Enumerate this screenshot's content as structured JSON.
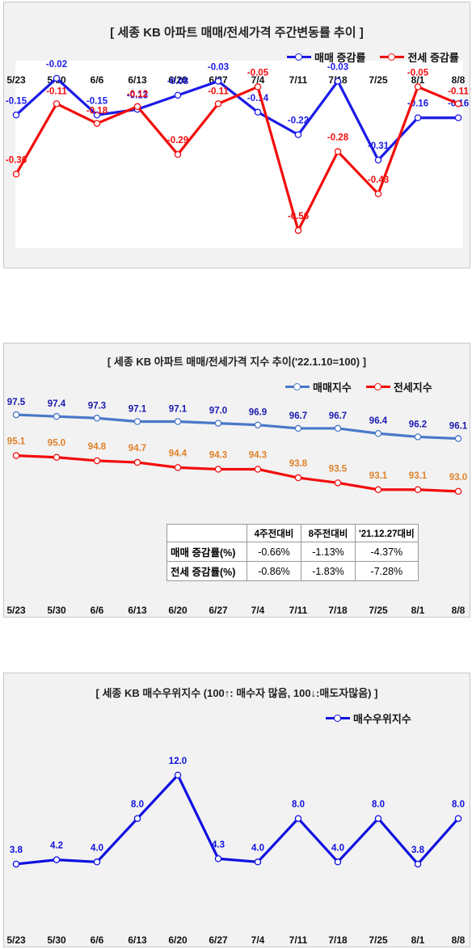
{
  "colors": {
    "sale": "#1a1ae6",
    "jeonse": "#f20d0d",
    "sale_index": "#4a78c8",
    "jeonse_label": "#e0822a",
    "buyer": "#1010e0"
  },
  "chart_data": [
    {
      "type": "line",
      "title": "[ 세종  KB 아파트 매매/전세가격 주간변동률 추이 ]",
      "categories": [
        "5/23",
        "5/30",
        "6/6",
        "6/13",
        "6/20",
        "6/27",
        "7/4",
        "7/11",
        "7/18",
        "7/25",
        "8/1",
        "8/8"
      ],
      "ylim": [
        -0.62,
        0.0
      ],
      "grid": false,
      "legend_position": "top-right",
      "series": [
        {
          "name": "매매 증감률",
          "color": "#1a1ae6",
          "values": [
            -0.15,
            -0.02,
            -0.15,
            -0.13,
            -0.08,
            -0.03,
            -0.14,
            -0.22,
            -0.03,
            -0.31,
            -0.16,
            -0.16
          ],
          "labels": [
            "-0.15",
            "-0.02",
            "-0.15",
            "-0.13",
            "-0.08",
            "-0.03",
            "-0.14",
            "-0.22",
            "-0.03",
            "-0.31",
            "-0.16",
            "-0.16"
          ]
        },
        {
          "name": "전세 증감률",
          "color": "#f20d0d",
          "values": [
            -0.36,
            -0.11,
            -0.18,
            -0.12,
            -0.29,
            -0.11,
            -0.05,
            -0.56,
            -0.28,
            -0.43,
            -0.05,
            -0.11
          ],
          "labels": [
            "-0.36",
            "-0.11",
            "-0.18",
            "-0.12",
            "-0.29",
            "-0.11",
            "-0.05",
            "-0.56",
            "-0.28",
            "-0.43",
            "-0.05",
            "-0.11"
          ]
        }
      ]
    },
    {
      "type": "line",
      "title": "[  세종  KB 아파트 매매/전세가격 지수 추이('22.1.10=100)  ]",
      "categories": [
        "5/23",
        "5/30",
        "6/6",
        "6/13",
        "6/20",
        "6/27",
        "7/4",
        "7/11",
        "7/18",
        "7/25",
        "8/1",
        "8/8"
      ],
      "ylim": [
        91.0,
        98.5
      ],
      "grid": false,
      "legend_position": "top-right",
      "series": [
        {
          "name": "매매지수",
          "color": "#4a78c8",
          "label_color": "#1a1ab0",
          "values": [
            97.5,
            97.4,
            97.3,
            97.1,
            97.1,
            97.0,
            96.9,
            96.7,
            96.7,
            96.4,
            96.2,
            96.1
          ],
          "labels": [
            "97.5",
            "97.4",
            "97.3",
            "97.1",
            "97.1",
            "97.0",
            "96.9",
            "96.7",
            "96.7",
            "96.4",
            "96.2",
            "96.1"
          ]
        },
        {
          "name": "전세지수",
          "color": "#f20d0d",
          "label_color": "#e0822a",
          "values": [
            95.1,
            95.0,
            94.8,
            94.7,
            94.4,
            94.3,
            94.3,
            93.8,
            93.5,
            93.1,
            93.1,
            93.0
          ],
          "labels": [
            "95.1",
            "95.0",
            "94.8",
            "94.7",
            "94.4",
            "94.3",
            "94.3",
            "93.8",
            "93.5",
            "93.1",
            "93.1",
            "93.0"
          ]
        }
      ],
      "table": {
        "headers": [
          "4주전대비",
          "8주전대비",
          "'21.12.27대비"
        ],
        "rows": [
          {
            "label": "매매 증감률(%)",
            "cells": [
              "-0.66%",
              "-1.13%",
              "-4.37%"
            ]
          },
          {
            "label": "전세 증감률(%)",
            "cells": [
              "-0.86%",
              "-1.83%",
              "-7.28%"
            ]
          }
        ]
      }
    },
    {
      "type": "line",
      "title": "[  세종  KB 매수우위지수 (100↑: 매수자 많음, 100↓:매도자많음)  ]",
      "categories": [
        "5/23",
        "5/30",
        "6/6",
        "6/13",
        "6/20",
        "6/27",
        "7/4",
        "7/11",
        "7/18",
        "7/25",
        "8/1",
        "8/8"
      ],
      "ylim": [
        0,
        14
      ],
      "grid": false,
      "legend_position": "top-right",
      "series": [
        {
          "name": "매수우위지수",
          "color": "#1010e0",
          "values": [
            3.8,
            4.2,
            4.0,
            8.0,
            12.0,
            4.3,
            4.0,
            8.0,
            4.0,
            8.0,
            3.8,
            8.0
          ],
          "labels": [
            "3.8",
            "4.2",
            "4.0",
            "8.0",
            "12.0",
            "4.3",
            "4.0",
            "8.0",
            "4.0",
            "8.0",
            "3.8",
            "8.0"
          ]
        }
      ]
    }
  ]
}
